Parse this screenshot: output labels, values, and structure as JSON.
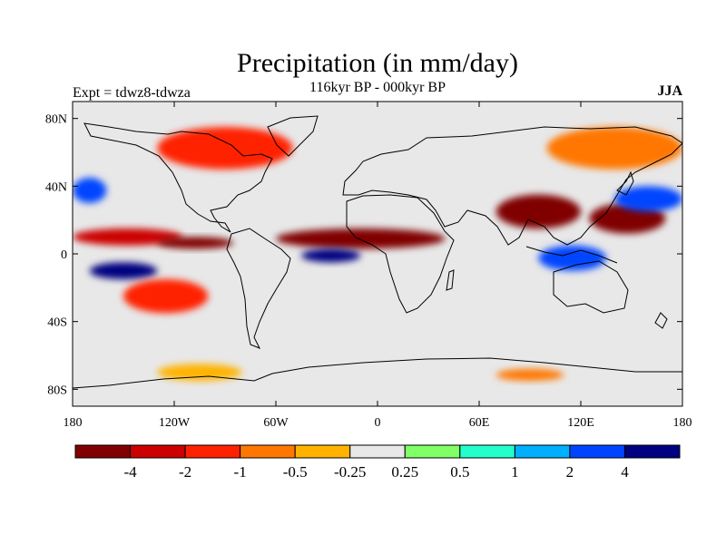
{
  "title": "Precipitation (in mm/day)",
  "subtitle": "116kyr BP - 000kyr BP",
  "experiment_label": "Expt = tdwz8-tdwza",
  "season": "JJA",
  "map": {
    "projection": "cylindrical-equidistant",
    "lon_range": [
      -180,
      180
    ],
    "lat_range": [
      -90,
      90
    ],
    "lat_ticks": [
      {
        "value": 80,
        "label": "80N"
      },
      {
        "value": 40,
        "label": "40N"
      },
      {
        "value": 0,
        "label": "0"
      },
      {
        "value": -40,
        "label": "40S"
      },
      {
        "value": -80,
        "label": "80S"
      }
    ],
    "lon_ticks": [
      {
        "value": -180,
        "label": "180"
      },
      {
        "value": -120,
        "label": "120W"
      },
      {
        "value": -60,
        "label": "60W"
      },
      {
        "value": 0,
        "label": "0"
      },
      {
        "value": 60,
        "label": "60E"
      },
      {
        "value": 120,
        "label": "120E"
      },
      {
        "value": 180,
        "label": "180"
      }
    ],
    "background_color": "#e8e8e8"
  },
  "colorbar": {
    "colors": [
      "#800000",
      "#cc0000",
      "#ff2200",
      "#ff7700",
      "#ffb300",
      "#e8e8e8",
      "#80ff66",
      "#22ffcc",
      "#00b0ff",
      "#0044ff",
      "#000080"
    ],
    "labels": [
      "-4",
      "-2",
      "-1",
      "-0.5",
      "-0.25",
      "0.25",
      "0.5",
      "1",
      "2",
      "4"
    ]
  },
  "chart_data": {
    "type": "heatmap",
    "title": "Precipitation (in mm/day)",
    "subtitle": "116kyr BP - 000kyr BP",
    "units": "mm/day",
    "levels": [
      -4,
      -2,
      -1,
      -0.5,
      -0.25,
      0.25,
      0.5,
      1,
      2,
      4
    ],
    "xlim": [
      -180,
      180
    ],
    "ylim": [
      -90,
      90
    ],
    "anomaly_regions": [
      {
        "lon": [
          -180,
          -115
        ],
        "lat": [
          5,
          15
        ],
        "level": -2
      },
      {
        "lon": [
          -130,
          -85
        ],
        "lat": [
          3,
          10
        ],
        "level": -4
      },
      {
        "lon": [
          -60,
          40
        ],
        "lat": [
          3,
          15
        ],
        "level": -4
      },
      {
        "lon": [
          70,
          120
        ],
        "lat": [
          15,
          35
        ],
        "level": -4
      },
      {
        "lon": [
          125,
          170
        ],
        "lat": [
          12,
          30
        ],
        "level": -4
      },
      {
        "lon": [
          -45,
          -10
        ],
        "lat": [
          -5,
          3
        ],
        "level": 4
      },
      {
        "lon": [
          -170,
          -130
        ],
        "lat": [
          -15,
          -5
        ],
        "level": 4
      },
      {
        "lon": [
          95,
          135
        ],
        "lat": [
          -10,
          5
        ],
        "level": 2
      },
      {
        "lon": [
          140,
          180
        ],
        "lat": [
          25,
          40
        ],
        "level": 2
      },
      {
        "lon": [
          -180,
          -160
        ],
        "lat": [
          30,
          45
        ],
        "level": 2
      },
      {
        "lon": [
          -150,
          -100
        ],
        "lat": [
          -35,
          -15
        ],
        "level": -1
      },
      {
        "lon": [
          -130,
          -80
        ],
        "lat": [
          -75,
          -65
        ],
        "level": -0.25
      },
      {
        "lon": [
          70,
          110
        ],
        "lat": [
          -75,
          -68
        ],
        "level": -0.5
      },
      {
        "lon": [
          -130,
          -50
        ],
        "lat": [
          50,
          75
        ],
        "level": -1
      },
      {
        "lon": [
          100,
          180
        ],
        "lat": [
          50,
          75
        ],
        "level": -0.5
      }
    ]
  }
}
